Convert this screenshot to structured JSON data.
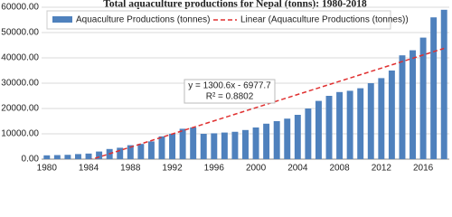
{
  "chart_data": {
    "type": "bar",
    "title": "Total aquaculture productions for Nepal (tonns): 1980-2018",
    "categories": [
      "1980",
      null,
      null,
      null,
      "1984",
      null,
      null,
      null,
      "1988",
      null,
      null,
      null,
      "1992",
      null,
      null,
      null,
      "1996",
      null,
      null,
      null,
      "2000",
      null,
      null,
      null,
      "2004",
      null,
      null,
      null,
      "2008",
      null,
      null,
      null,
      "2012",
      null,
      null,
      null,
      "2016",
      null,
      null
    ],
    "series": [
      {
        "name": "Aquaculture Productions (tonnes)",
        "color": "#4f81bd",
        "values": [
          1500,
          1600,
          1700,
          2000,
          2200,
          3000,
          4000,
          4500,
          5500,
          6000,
          7000,
          9000,
          10000,
          12000,
          12500,
          10000,
          10200,
          10500,
          10800,
          11500,
          12500,
          14000,
          15000,
          16000,
          17500,
          20000,
          23000,
          25000,
          26500,
          27000,
          28000,
          30000,
          32000,
          35000,
          41000,
          43000,
          48000,
          56000,
          59000
        ]
      }
    ],
    "trendline": {
      "name": "Linear (Aquaculture Productions (tonnes))",
      "color": "#e03030",
      "slope": 1300.6,
      "intercept": -6977.7,
      "equation": "y = 1300.6x - 6977.7",
      "r_squared": "R² = 0.8802"
    },
    "ylim": [
      0,
      60000
    ],
    "yticks": [
      {
        "value": 0,
        "label": "0.00"
      },
      {
        "value": 10000,
        "label": "10000.00"
      },
      {
        "value": 20000,
        "label": "20000.00"
      },
      {
        "value": 30000,
        "label": "30000.00"
      },
      {
        "value": 40000,
        "label": "40000.00"
      },
      {
        "value": 50000,
        "label": "50000.00"
      },
      {
        "value": 60000,
        "label": "60000.00"
      }
    ],
    "grid": true,
    "legend": "top"
  }
}
